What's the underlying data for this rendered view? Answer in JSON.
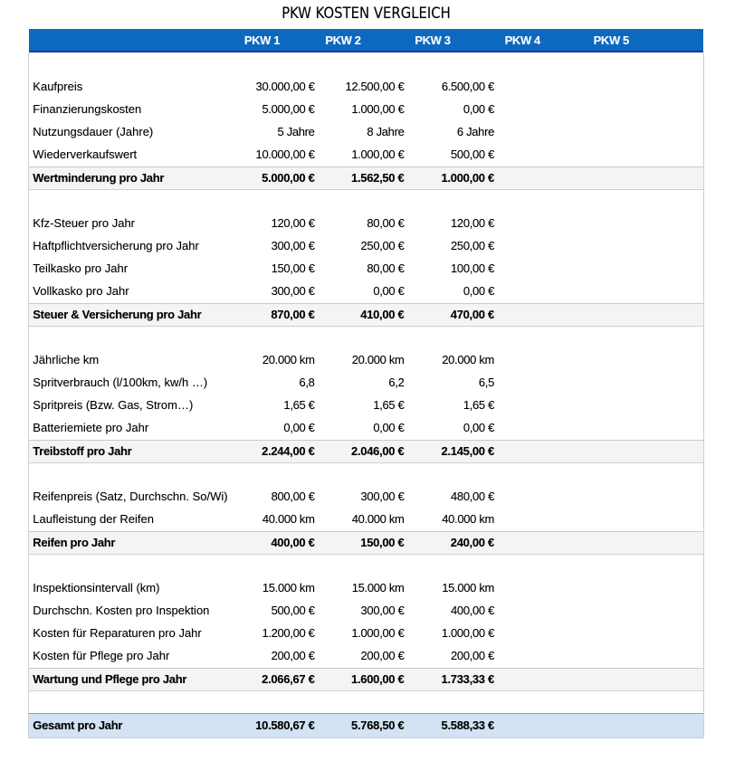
{
  "page": {
    "title": "PKW KOSTEN VERGLEICH"
  },
  "colors": {
    "header_bg": "#0d68c0",
    "header_border": "#0d4489",
    "header_text": "#ffffff",
    "subtotal_bg": "#f4f4f4",
    "total_bg": "#d3e3f3"
  },
  "table": {
    "columns": [
      "PKW 1",
      "PKW 2",
      "PKW 3",
      "PKW 4",
      "PKW 5"
    ],
    "rows": [
      {
        "type": "spacer",
        "label": "",
        "values": [
          "",
          "",
          "",
          "",
          ""
        ]
      },
      {
        "type": "data",
        "label": "Kaufpreis",
        "values": [
          "30.000,00 €",
          "12.500,00 €",
          "6.500,00 €",
          "",
          ""
        ]
      },
      {
        "type": "data",
        "label": "Finanzierungskosten",
        "values": [
          "5.000,00 €",
          "1.000,00 €",
          "0,00 €",
          "",
          ""
        ]
      },
      {
        "type": "data",
        "label": "Nutzungsdauer (Jahre)",
        "values": [
          "5 Jahre",
          "8 Jahre",
          "6 Jahre",
          "",
          ""
        ]
      },
      {
        "type": "data",
        "label": "Wiederverkaufswert",
        "values": [
          "10.000,00 €",
          "1.000,00 €",
          "500,00 €",
          "",
          ""
        ]
      },
      {
        "type": "subtotal",
        "label": "Wertminderung pro Jahr",
        "values": [
          "5.000,00 €",
          "1.562,50 €",
          "1.000,00 €",
          "",
          ""
        ]
      },
      {
        "type": "spacer",
        "label": "",
        "values": [
          "",
          "",
          "",
          "",
          ""
        ]
      },
      {
        "type": "data",
        "label": "Kfz-Steuer pro Jahr",
        "values": [
          "120,00 €",
          "80,00 €",
          "120,00 €",
          "",
          ""
        ]
      },
      {
        "type": "data",
        "label": "Haftpflichtversicherung pro Jahr",
        "values": [
          "300,00 €",
          "250,00 €",
          "250,00 €",
          "",
          ""
        ]
      },
      {
        "type": "data",
        "label": "Teilkasko pro Jahr",
        "values": [
          "150,00 €",
          "80,00 €",
          "100,00 €",
          "",
          ""
        ]
      },
      {
        "type": "data",
        "label": "Vollkasko pro Jahr",
        "values": [
          "300,00 €",
          "0,00 €",
          "0,00 €",
          "",
          ""
        ]
      },
      {
        "type": "subtotal",
        "label": "Steuer & Versicherung pro Jahr",
        "values": [
          "870,00 €",
          "410,00 €",
          "470,00 €",
          "",
          ""
        ]
      },
      {
        "type": "spacer",
        "label": "",
        "values": [
          "",
          "",
          "",
          "",
          ""
        ]
      },
      {
        "type": "data",
        "label": "Jährliche km",
        "values": [
          "20.000 km",
          "20.000 km",
          "20.000 km",
          "",
          ""
        ]
      },
      {
        "type": "data",
        "label": "Spritverbrauch (l/100km, kw/h …)",
        "values": [
          "6,8",
          "6,2",
          "6,5",
          "",
          ""
        ]
      },
      {
        "type": "data",
        "label": "Spritpreis (Bzw. Gas, Strom…)",
        "values": [
          "1,65 €",
          "1,65 €",
          "1,65 €",
          "",
          ""
        ]
      },
      {
        "type": "data",
        "label": "Batteriemiete pro Jahr",
        "values": [
          "0,00 €",
          "0,00 €",
          "0,00 €",
          "",
          ""
        ]
      },
      {
        "type": "subtotal",
        "label": "Treibstoff pro Jahr",
        "values": [
          "2.244,00 €",
          "2.046,00 €",
          "2.145,00 €",
          "",
          ""
        ]
      },
      {
        "type": "spacer",
        "label": "",
        "values": [
          "",
          "",
          "",
          "",
          ""
        ]
      },
      {
        "type": "data",
        "label": "Reifenpreis (Satz, Durchschn. So/Wi)",
        "values": [
          "800,00 €",
          "300,00 €",
          "480,00 €",
          "",
          ""
        ]
      },
      {
        "type": "data",
        "label": "Laufleistung der Reifen",
        "values": [
          "40.000 km",
          "40.000 km",
          "40.000 km",
          "",
          ""
        ]
      },
      {
        "type": "subtotal",
        "label": "Reifen pro Jahr",
        "values": [
          "400,00 €",
          "150,00 €",
          "240,00 €",
          "",
          ""
        ]
      },
      {
        "type": "spacer",
        "label": "",
        "values": [
          "",
          "",
          "",
          "",
          ""
        ]
      },
      {
        "type": "data",
        "label": "Inspektionsintervall (km)",
        "values": [
          "15.000 km",
          "15.000 km",
          "15.000 km",
          "",
          ""
        ]
      },
      {
        "type": "data",
        "label": "Durchschn. Kosten pro Inspektion",
        "values": [
          "500,00 €",
          "300,00 €",
          "400,00 €",
          "",
          ""
        ]
      },
      {
        "type": "data",
        "label": "Kosten für Reparaturen pro Jahr",
        "values": [
          "1.200,00 €",
          "1.000,00 €",
          "1.000,00 €",
          "",
          ""
        ]
      },
      {
        "type": "data",
        "label": "Kosten für Pflege pro Jahr",
        "values": [
          "200,00 €",
          "200,00 €",
          "200,00 €",
          "",
          ""
        ]
      },
      {
        "type": "subtotal",
        "label": "Wartung und Pflege pro Jahr",
        "values": [
          "2.066,67 €",
          "1.600,00 €",
          "1.733,33 €",
          "",
          ""
        ]
      },
      {
        "type": "spacer",
        "label": "",
        "values": [
          "",
          "",
          "",
          "",
          ""
        ]
      },
      {
        "type": "total",
        "label": "Gesamt pro Jahr",
        "values": [
          "10.580,67 €",
          "5.768,50 €",
          "5.588,33 €",
          "",
          ""
        ]
      }
    ]
  }
}
